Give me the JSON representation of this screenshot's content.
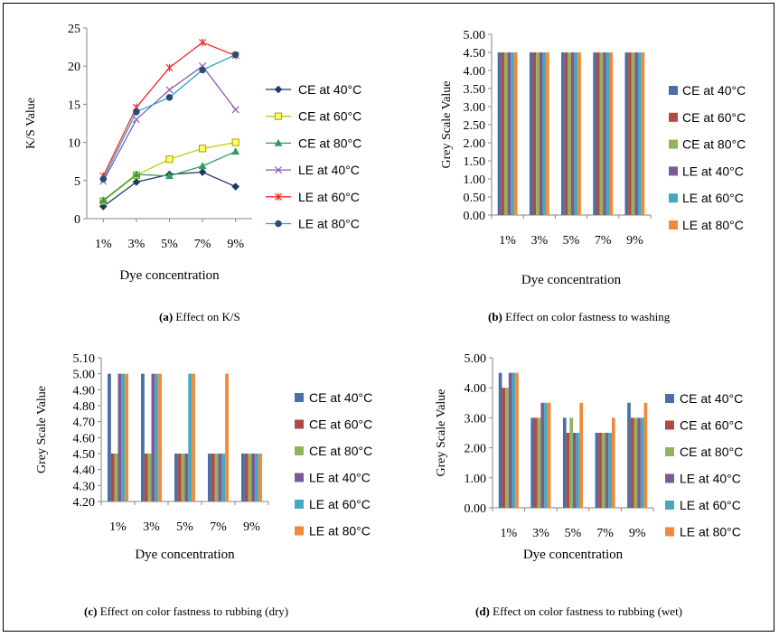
{
  "legend_entries": [
    "CE at 40°C",
    "CE at 60°C",
    "CE at 80°C",
    "LE at 40°C",
    "LE at 60°C",
    "LE at 80°C"
  ],
  "series_colors": {
    "line": [
      "#1f3864",
      "#c9c900",
      "#2e9e5a",
      "#8e5bb5",
      "#ee2a2a",
      "#2aa0c8"
    ],
    "bar": [
      "#4a6fa5",
      "#b04a48",
      "#93b35a",
      "#7a5b96",
      "#46a9c0",
      "#f08a3a"
    ]
  },
  "captions": {
    "a": {
      "letter": "(a)",
      "text": " Effect on K/S"
    },
    "b": {
      "letter": "(b)",
      "text": " Effect on color fastness to washing"
    },
    "c": {
      "letter": "(c)",
      "text": " Effect on color fastness to rubbing (dry)"
    },
    "d": {
      "letter": "(d)",
      "text": " Effect on color fastness to rubbing (wet)"
    }
  },
  "chart_data": [
    {
      "id": "a",
      "type": "line",
      "xlabel": "Dye concentration",
      "ylabel": "K/S Value",
      "categories": [
        "1%",
        "3%",
        "5%",
        "7%",
        "9%"
      ],
      "ylim": [
        0,
        25
      ],
      "yticks": [
        0,
        5,
        10,
        15,
        20,
        25
      ],
      "ytick_decimals": 0,
      "grid": false,
      "legend_position": "right",
      "series": [
        {
          "name": "CE at 40°C",
          "marker": "diamond",
          "values": [
            1.6,
            4.8,
            5.8,
            6.1,
            4.2
          ]
        },
        {
          "name": "CE at 60°C",
          "marker": "square",
          "values": [
            2.3,
            5.7,
            7.8,
            9.2,
            10.0
          ]
        },
        {
          "name": "CE at 80°C",
          "marker": "triangle",
          "values": [
            2.4,
            5.8,
            5.6,
            6.9,
            8.8
          ]
        },
        {
          "name": "LE at 40°C",
          "marker": "x",
          "values": [
            4.9,
            13.0,
            16.9,
            20.0,
            14.3
          ]
        },
        {
          "name": "LE at 60°C",
          "marker": "star",
          "values": [
            5.6,
            14.6,
            19.8,
            23.1,
            21.4
          ]
        },
        {
          "name": "LE at 80°C",
          "marker": "circle",
          "values": [
            5.2,
            14.0,
            15.9,
            19.5,
            21.5
          ]
        }
      ]
    },
    {
      "id": "b",
      "type": "bar",
      "xlabel": "Dye concentration",
      "ylabel": "Grey Scale Value",
      "categories": [
        "1%",
        "3%",
        "5%",
        "7%",
        "9%"
      ],
      "ylim": [
        0,
        5
      ],
      "yticks": [
        0,
        0.5,
        1,
        1.5,
        2,
        2.5,
        3,
        3.5,
        4,
        4.5,
        5
      ],
      "ytick_decimals": 2,
      "grid": false,
      "legend_position": "right",
      "series": [
        {
          "name": "CE at 40°C",
          "values": [
            4.5,
            4.5,
            4.5,
            4.5,
            4.5
          ]
        },
        {
          "name": "CE at 60°C",
          "values": [
            4.5,
            4.5,
            4.5,
            4.5,
            4.5
          ]
        },
        {
          "name": "CE at 80°C",
          "values": [
            4.5,
            4.5,
            4.5,
            4.5,
            4.5
          ]
        },
        {
          "name": "LE at 40°C",
          "values": [
            4.5,
            4.5,
            4.5,
            4.5,
            4.5
          ]
        },
        {
          "name": "LE at 60°C",
          "values": [
            4.5,
            4.5,
            4.5,
            4.5,
            4.5
          ]
        },
        {
          "name": "LE at 80°C",
          "values": [
            4.5,
            4.5,
            4.5,
            4.5,
            4.5
          ]
        }
      ]
    },
    {
      "id": "c",
      "type": "bar",
      "xlabel": "Dye concentration",
      "ylabel": "Grey Scale Value",
      "categories": [
        "1%",
        "3%",
        "5%",
        "7%",
        "9%"
      ],
      "ylim": [
        4.2,
        5.1
      ],
      "yticks": [
        4.2,
        4.3,
        4.4,
        4.5,
        4.6,
        4.7,
        4.8,
        4.9,
        5.0,
        5.1
      ],
      "ytick_decimals": 2,
      "grid": false,
      "legend_position": "right",
      "series": [
        {
          "name": "CE at 40°C",
          "values": [
            5.0,
            5.0,
            4.5,
            4.5,
            4.5
          ]
        },
        {
          "name": "CE at 60°C",
          "values": [
            4.5,
            4.5,
            4.5,
            4.5,
            4.5
          ]
        },
        {
          "name": "CE at 80°C",
          "values": [
            4.5,
            4.5,
            4.5,
            4.5,
            4.5
          ]
        },
        {
          "name": "LE at 40°C",
          "values": [
            5.0,
            5.0,
            4.5,
            4.5,
            4.5
          ]
        },
        {
          "name": "LE at 60°C",
          "values": [
            5.0,
            5.0,
            5.0,
            4.5,
            4.5
          ]
        },
        {
          "name": "LE at 80°C",
          "values": [
            5.0,
            5.0,
            5.0,
            5.0,
            4.5
          ]
        }
      ]
    },
    {
      "id": "d",
      "type": "bar",
      "xlabel": "Dye concentration",
      "ylabel": "Grey Scale Value",
      "categories": [
        "1%",
        "3%",
        "5%",
        "7%",
        "9%"
      ],
      "ylim": [
        0,
        5
      ],
      "yticks": [
        0,
        1,
        2,
        3,
        4,
        5
      ],
      "ytick_decimals": 2,
      "grid": false,
      "legend_position": "right",
      "series": [
        {
          "name": "CE at 40°C",
          "values": [
            4.5,
            3.0,
            3.0,
            2.5,
            3.5
          ]
        },
        {
          "name": "CE at 60°C",
          "values": [
            4.0,
            3.0,
            2.5,
            2.5,
            3.0
          ]
        },
        {
          "name": "CE at 80°C",
          "values": [
            4.0,
            3.0,
            3.0,
            2.5,
            3.0
          ]
        },
        {
          "name": "LE at 40°C",
          "values": [
            4.5,
            3.5,
            2.5,
            2.5,
            3.0
          ]
        },
        {
          "name": "LE at 60°C",
          "values": [
            4.5,
            3.5,
            2.5,
            2.5,
            3.0
          ]
        },
        {
          "name": "LE at 80°C",
          "values": [
            4.5,
            3.5,
            3.5,
            3.0,
            3.5
          ]
        }
      ]
    }
  ]
}
